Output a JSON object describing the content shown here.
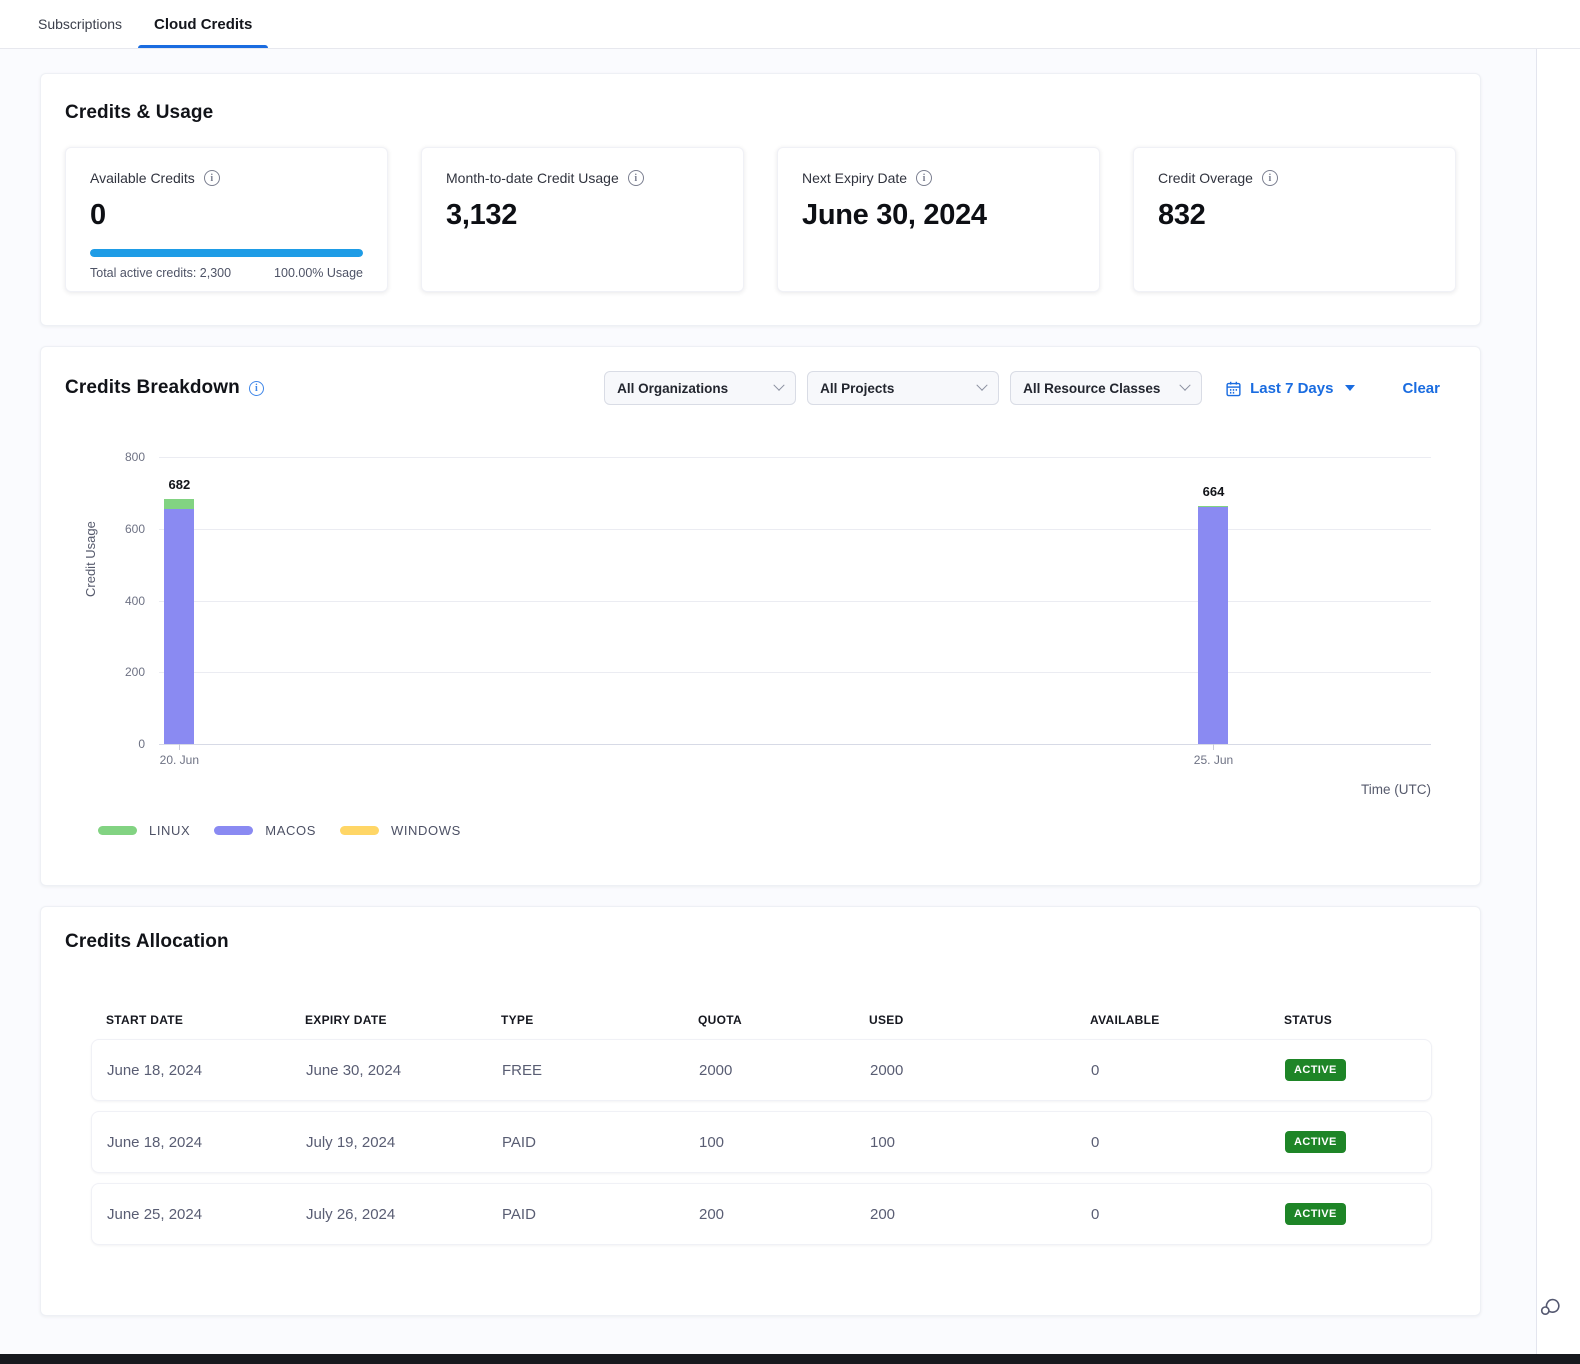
{
  "tab_bar": {
    "tabs": [
      {
        "label": "Subscriptions",
        "active": false
      },
      {
        "label": "Cloud Credits",
        "active": true
      }
    ]
  },
  "credits_usage": {
    "title": "Credits & Usage",
    "cards": [
      {
        "label": "Available Credits",
        "value": "0",
        "progress_pct": 100,
        "footer_left": "Total active credits: 2,300",
        "footer_right": "100.00% Usage"
      },
      {
        "label": "Month-to-date Credit Usage",
        "value": "3,132"
      },
      {
        "label": "Next Expiry Date",
        "value": "June 30, 2024"
      },
      {
        "label": "Credit Overage",
        "value": "832"
      }
    ]
  },
  "credits_breakdown": {
    "title": "Credits Breakdown",
    "filters": {
      "organizations": "All Organizations",
      "projects": "All Projects",
      "resource_classes": "All Resource Classes",
      "date_range": "Last 7 Days",
      "clear_label": "Clear"
    }
  },
  "chart_data": {
    "type": "bar",
    "stacked": true,
    "x": [
      "20. Jun",
      "25. Jun"
    ],
    "x_pos_pct": [
      1.6,
      82.9
    ],
    "series": [
      {
        "name": "LINUX",
        "color": "#82d382",
        "values": [
          27,
          2
        ]
      },
      {
        "name": "MACOS",
        "color": "#8a8af2",
        "values": [
          655,
          662
        ]
      },
      {
        "name": "WINDOWS",
        "color": "#ffd666",
        "values": [
          0,
          0
        ]
      }
    ],
    "totals": [
      682,
      664
    ],
    "xlabel": "Time (UTC)",
    "ylabel": "Credit Usage",
    "ylim": [
      0,
      800
    ],
    "yticks": [
      0,
      200,
      400,
      600,
      800
    ],
    "legend_position": "bottom-left",
    "grid": true
  },
  "credits_allocation": {
    "title": "Credits Allocation",
    "columns": [
      "START DATE",
      "EXPIRY DATE",
      "TYPE",
      "QUOTA",
      "USED",
      "AVAILABLE",
      "STATUS"
    ],
    "rows": [
      {
        "start_date": "June 18, 2024",
        "expiry_date": "June 30, 2024",
        "type": "FREE",
        "quota": "2000",
        "used": "2000",
        "available": "0",
        "status": "ACTIVE"
      },
      {
        "start_date": "June 18, 2024",
        "expiry_date": "July 19, 2024",
        "type": "PAID",
        "quota": "100",
        "used": "100",
        "available": "0",
        "status": "ACTIVE"
      },
      {
        "start_date": "June 25, 2024",
        "expiry_date": "July 26, 2024",
        "type": "PAID",
        "quota": "200",
        "used": "200",
        "available": "0",
        "status": "ACTIVE"
      }
    ]
  },
  "colors": {
    "accent_blue": "#1a6ce0",
    "progress_blue": "#1e9ce6",
    "badge_green": "#1e8527",
    "bar_linux": "#82d382",
    "bar_macos": "#8a8af2",
    "bar_windows": "#ffd666"
  }
}
